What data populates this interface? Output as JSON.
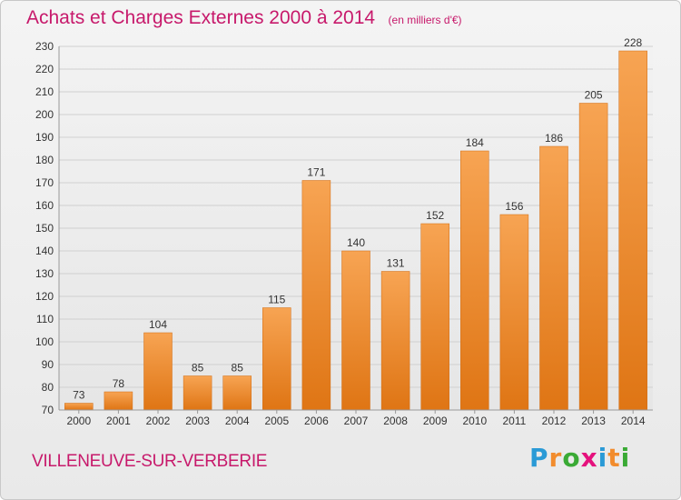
{
  "chart_data": {
    "type": "bar",
    "title": "Achats et Charges Externes 2000 à 2014",
    "subtitle": "(en milliers d'€)",
    "categories": [
      "2000",
      "2001",
      "2002",
      "2003",
      "2004",
      "2005",
      "2006",
      "2007",
      "2008",
      "2009",
      "2010",
      "2011",
      "2012",
      "2013",
      "2014"
    ],
    "values": [
      73,
      78,
      104,
      85,
      85,
      115,
      171,
      140,
      131,
      152,
      184,
      156,
      186,
      205,
      228
    ],
    "ylim": [
      70,
      230
    ],
    "yticks": [
      70,
      80,
      90,
      100,
      110,
      120,
      130,
      140,
      150,
      160,
      170,
      180,
      190,
      200,
      210,
      220,
      230
    ],
    "grid": true,
    "bar_color": "#f28c2d",
    "xlabel": "",
    "ylabel": ""
  },
  "footer": {
    "town": "VILLENEUVE-SUR-VERBERIE",
    "logo_letters": [
      "P",
      "r",
      "o",
      "x",
      "i",
      "t",
      "i"
    ],
    "logo_colors": [
      "#2a9ad6",
      "#f28c2d",
      "#3aaa35",
      "#e5127d",
      "#2a9ad6",
      "#f28c2d",
      "#3aaa35"
    ]
  },
  "colors": {
    "title": "#c7196b",
    "grid": "#d0d0d0",
    "axis_text": "#333333"
  }
}
